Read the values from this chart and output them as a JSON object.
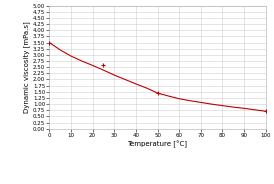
{
  "temperature": [
    0,
    25,
    50,
    100
  ],
  "viscosity": [
    3.5,
    2.57,
    1.45,
    0.71
  ],
  "smooth_temp": [
    0,
    5,
    10,
    15,
    20,
    25,
    30,
    35,
    40,
    45,
    50,
    55,
    60,
    65,
    70,
    75,
    80,
    85,
    90,
    95,
    100
  ],
  "smooth_visc": [
    3.5,
    3.2,
    2.95,
    2.75,
    2.57,
    2.38,
    2.18,
    2.0,
    1.82,
    1.65,
    1.45,
    1.33,
    1.22,
    1.14,
    1.07,
    1.0,
    0.94,
    0.88,
    0.83,
    0.77,
    0.71
  ],
  "line_color": "#c00000",
  "marker": "+",
  "marker_size": 3,
  "marker_linewidth": 0.8,
  "xlabel": "Temperature [°C]",
  "ylabel": "Dynamic viscosity [mPa.s]",
  "legend_label": "dynamic viscosity [mPa.s]",
  "xlim": [
    0,
    100
  ],
  "ylim": [
    0.0,
    5.0
  ],
  "yticks": [
    0.0,
    0.25,
    0.5,
    0.75,
    1.0,
    1.25,
    1.5,
    1.75,
    2.0,
    2.25,
    2.5,
    2.75,
    3.0,
    3.25,
    3.5,
    3.75,
    4.0,
    4.25,
    4.5,
    4.75,
    5.0
  ],
  "xticks": [
    0,
    10,
    20,
    30,
    40,
    50,
    60,
    70,
    80,
    90,
    100
  ],
  "grid_color": "#d0d0d0",
  "bg_color": "#ffffff",
  "tick_fontsize": 4.0,
  "label_fontsize": 5.0,
  "legend_fontsize": 4.0,
  "linewidth": 0.8,
  "spine_color": "#aaaaaa"
}
